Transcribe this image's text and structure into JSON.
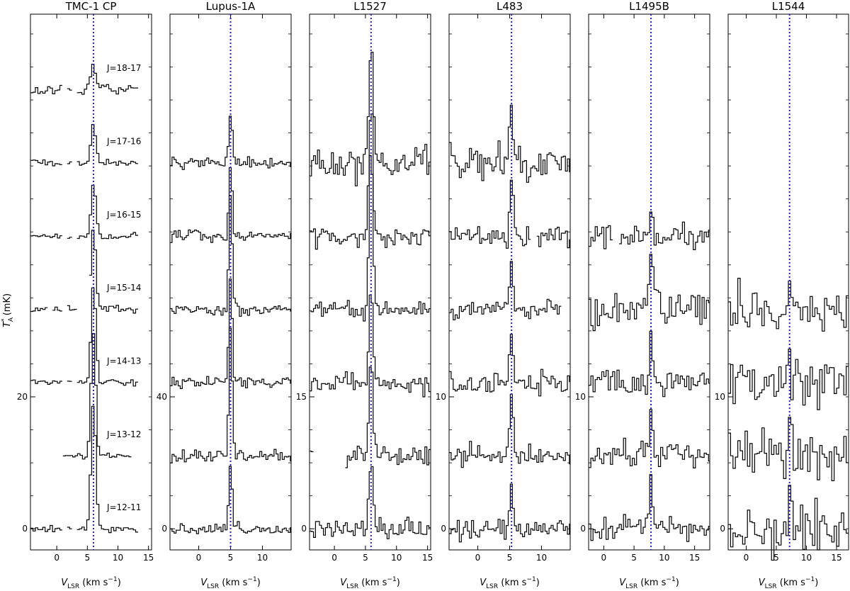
{
  "figure": {
    "ylabel_main": "T",
    "ylabel_sup": "*",
    "ylabel_sub": "A",
    "ylabel_unit": " (mK)",
    "xlabel_main": "V",
    "xlabel_sub": "LSR",
    "xlabel_unit": " (km s",
    "xlabel_exp": "−1",
    "xlabel_close": ")"
  },
  "chart_data": [
    {
      "type": "line",
      "title": "TMC-1 CP",
      "xlim": [
        -4.3,
        15.5
      ],
      "x_ticks": [
        0,
        5,
        10,
        15
      ],
      "x_tick_labels": [
        "0",
        "5",
        "10",
        "15"
      ],
      "y_tick_labels": [
        "0",
        "20"
      ],
      "y_tick_values": [
        0,
        20
      ],
      "offset_step": 11.1,
      "ylim": [
        -3.2,
        78
      ],
      "vlsr": 6.0,
      "line_width": 0.9,
      "noise_amp": 0.35,
      "x_range": [
        -4.3,
        13
      ],
      "gaps": [
        [
          0.8,
          1.6
        ],
        [
          2.5,
          3.2
        ]
      ],
      "channel": 0.4,
      "peak_scale": 1.0,
      "series": [
        {
          "name": "J=12-11",
          "peak": 19.0
        },
        {
          "name": "J=13-12",
          "peak": 18.5,
          "x_range": [
            1.0,
            12.0
          ],
          "gaps": []
        },
        {
          "name": "J=14-13",
          "peak": 15.0
        },
        {
          "name": "J=15-14",
          "peak": 12.0,
          "gaps": [
            [
              -1.6,
              -0.6
            ],
            [
              1.0,
              1.6
            ],
            [
              3.4,
              5.2
            ]
          ]
        },
        {
          "name": "J=16-15",
          "peak": 8.0
        },
        {
          "name": "J=17-16",
          "peak": 6.0
        },
        {
          "name": "J=18-17",
          "peak": 3.0,
          "noise_amp": 0.6,
          "gaps": [
            [
              1.0,
              1.6
            ],
            [
              2.6,
              3.4
            ]
          ]
        }
      ]
    },
    {
      "type": "line",
      "title": "Lupus-1A",
      "xlim": [
        -4.5,
        14.5
      ],
      "x_ticks": [
        0,
        5,
        10
      ],
      "x_tick_labels": [
        "0",
        "5",
        "10"
      ],
      "y_tick_labels": [
        "0",
        "40"
      ],
      "y_tick_values": [
        0,
        40
      ],
      "offset_step": 22.2,
      "ylim": [
        -6.4,
        156
      ],
      "vlsr": 5.0,
      "line_width": 0.6,
      "noise_amp": 1.2,
      "channel": 0.32,
      "series": [
        {
          "name": "J=12-11",
          "peak": 20.0
        },
        {
          "name": "J=13-12",
          "peak": 39.0
        },
        {
          "name": "J=14-13",
          "peak": 32.0
        },
        {
          "name": "J=15-14",
          "peak": 34.0
        },
        {
          "name": "J=16-15",
          "peak": 22.0
        },
        {
          "name": "J=17-16",
          "peak": 14.0
        }
      ]
    },
    {
      "type": "line",
      "title": "L1527",
      "xlim": [
        -4,
        15.5
      ],
      "x_ticks": [
        0,
        5,
        10,
        15
      ],
      "x_tick_labels": [
        "0",
        "5",
        "10",
        "15"
      ],
      "y_tick_labels": [
        "0",
        "15"
      ],
      "y_tick_values": [
        0,
        15
      ],
      "offset_step": 8.3,
      "ylim": [
        -2.4,
        58.5
      ],
      "vlsr": 5.9,
      "line_width": 0.7,
      "noise_amp": 0.8,
      "channel": 0.32,
      "series": [
        {
          "name": "J=12-11",
          "peak": 7.5
        },
        {
          "name": "J=13-12",
          "peak": 11.5,
          "gaps": [
            [
              -3.2,
              1.6
            ]
          ]
        },
        {
          "name": "J=14-13",
          "peak": 10.0
        },
        {
          "name": "J=15-14",
          "peak": 19.0
        },
        {
          "name": "J=16-15",
          "peak": 16.0
        },
        {
          "name": "J=17-16",
          "peak": 14.0,
          "noise_amp": 1.4
        }
      ]
    },
    {
      "type": "line",
      "title": "L483",
      "xlim": [
        -4.5,
        14.5
      ],
      "x_ticks": [
        0,
        5,
        10
      ],
      "x_tick_labels": [
        "0",
        "5",
        "10"
      ],
      "y_tick_labels": [
        "0",
        "10"
      ],
      "y_tick_values": [
        0,
        10
      ],
      "offset_step": 5.55,
      "ylim": [
        -1.6,
        39
      ],
      "vlsr": 5.3,
      "line_width": 0.6,
      "noise_amp": 0.6,
      "channel": 0.32,
      "series": [
        {
          "name": "J=12-11",
          "peak": 3.0
        },
        {
          "name": "J=13-12",
          "peak": 5.5
        },
        {
          "name": "J=14-13",
          "peak": 4.0
        },
        {
          "name": "J=15-14",
          "peak": 3.5,
          "x_range": [
            -4.5,
            13
          ]
        },
        {
          "name": "J=16-15",
          "peak": 4.5,
          "gaps": [
            [
              8.2,
              9.4
            ]
          ]
        },
        {
          "name": "J=17-16",
          "peak": 4.0,
          "noise_amp": 1.0
        }
      ]
    },
    {
      "type": "line",
      "title": "L1495B",
      "xlim": [
        -2.5,
        17.5
      ],
      "x_ticks": [
        0,
        5,
        10,
        15
      ],
      "x_tick_labels": [
        "0",
        "5",
        "10",
        "15"
      ],
      "y_tick_labels": [
        "0",
        "10"
      ],
      "y_tick_values": [
        0,
        10
      ],
      "offset_step": 5.55,
      "ylim": [
        -1.6,
        39
      ],
      "vlsr": 7.8,
      "line_width": 0.6,
      "noise_amp": 0.7,
      "channel": 0.36,
      "series": [
        {
          "name": "J=12-11",
          "peak": 4.5
        },
        {
          "name": "J=13-12",
          "peak": 3.5
        },
        {
          "name": "J=14-13",
          "peak": 3.5
        },
        {
          "name": "J=15-14",
          "peak": 4.5,
          "noise_amp": 1.1
        },
        {
          "name": "J=16-15",
          "peak": 2.5,
          "gaps": [
            [
              1.4,
              2.6
            ]
          ]
        }
      ]
    },
    {
      "type": "line",
      "title": "L1544",
      "xlim": [
        -3,
        17
      ],
      "x_ticks": [
        0,
        5,
        10,
        15
      ],
      "x_tick_labels": [
        "0",
        "5",
        "10",
        "15"
      ],
      "y_tick_labels": [
        "0",
        "10"
      ],
      "y_tick_values": [
        0,
        10
      ],
      "offset_step": 5.55,
      "ylim": [
        -1.6,
        39
      ],
      "vlsr": 7.2,
      "line_width": 0.6,
      "noise_amp": 1.4,
      "channel": 0.4,
      "series": [
        {
          "name": "J=12-11",
          "peak": 2.0
        },
        {
          "name": "J=13-12",
          "peak": 2.0
        },
        {
          "name": "J=14-13",
          "peak": 2.0
        },
        {
          "name": "J=15-14",
          "peak": 2.0
        }
      ]
    }
  ]
}
